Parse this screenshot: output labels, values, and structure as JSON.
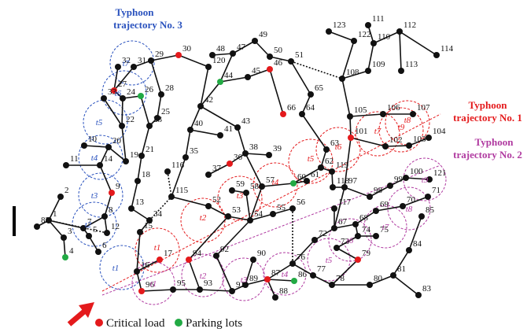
{
  "trajectories": [
    {
      "title_line1": "Typhoon",
      "title_line2": "trajectory No. 3",
      "color": "#2a52be",
      "time_labels": [
        "t1",
        "t2",
        "t3",
        "t4",
        "t5",
        "t6",
        "t7"
      ]
    },
    {
      "title_line1": "Typhoon",
      "title_line2": "trajectory No. 1",
      "color": "#e41a1c",
      "time_labels": [
        "t1",
        "t2",
        "t3",
        "t4",
        "t5",
        "t6",
        "t7",
        "t8",
        "t9"
      ]
    },
    {
      "title_line1": "Typhoon",
      "title_line2": "trajectory No. 2",
      "color": "#b03aa0",
      "time_labels": [
        "t1",
        "t2",
        "t3",
        "t4",
        "t5",
        "t6",
        "t7",
        "t8",
        "t9"
      ]
    }
  ],
  "legend": {
    "critical_label": "Critical load",
    "parking_label": "Parking lots",
    "critical_color": "#e41a1c",
    "parking_color": "#22aa44"
  },
  "node_labels": [
    "1",
    "2",
    "3",
    "4",
    "5",
    "6",
    "7",
    "8",
    "9",
    "10",
    "11",
    "12",
    "13",
    "14",
    "15",
    "16",
    "17",
    "18",
    "19",
    "20",
    "21",
    "22",
    "23",
    "24",
    "25",
    "26",
    "27",
    "28",
    "29",
    "30",
    "31",
    "32",
    "33",
    "34",
    "35",
    "36",
    "37",
    "38",
    "39",
    "40",
    "41",
    "42",
    "43",
    "44",
    "45",
    "46",
    "47",
    "48",
    "49",
    "50",
    "51",
    "52",
    "53",
    "54",
    "55",
    "56",
    "57",
    "58",
    "59",
    "60",
    "61",
    "62",
    "63",
    "64",
    "65",
    "66",
    "67",
    "68",
    "69",
    "70",
    "71",
    "72",
    "73",
    "74",
    "75",
    "76",
    "77",
    "78",
    "79",
    "80",
    "81",
    "82",
    "83",
    "84",
    "85",
    "86",
    "87",
    "88",
    "89",
    "90",
    "91",
    "92",
    "93",
    "94",
    "95",
    "96",
    "97",
    "98",
    "99",
    "100",
    "101",
    "102",
    "103",
    "104",
    "105",
    "106",
    "107",
    "108",
    "109",
    "110",
    "111",
    "112",
    "113",
    "114",
    "115",
    "116",
    "117",
    "118",
    "119",
    "120",
    "121",
    "122",
    "123"
  ]
}
